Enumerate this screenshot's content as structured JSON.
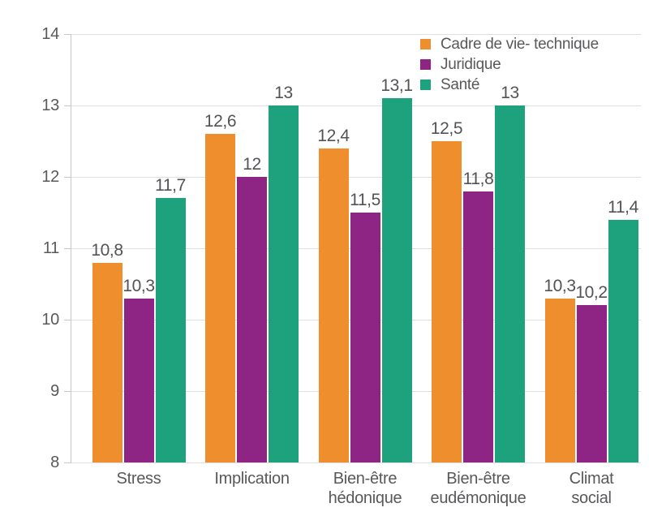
{
  "chart_data": {
    "type": "bar",
    "title": "",
    "categories": [
      "Stress",
      "Implication",
      "Bien-être\nhédonique",
      "Bien-être\neudémonique",
      "Climat\nsocial"
    ],
    "series": [
      {
        "name": "Cadre de vie- technique",
        "color": "#ee8e2d",
        "values": [
          10.8,
          12.6,
          12.4,
          12.5,
          10.3
        ],
        "labels": [
          "10,8",
          "12,6",
          "12,4",
          "12,5",
          "10,3"
        ]
      },
      {
        "name": "Juridique",
        "color": "#8e2585",
        "values": [
          10.3,
          12.0,
          11.5,
          11.8,
          10.2
        ],
        "labels": [
          "10,3",
          "12",
          "11,5",
          "11,8",
          "10,2"
        ]
      },
      {
        "name": "Santé",
        "color": "#1ea17d",
        "values": [
          11.7,
          13.0,
          13.1,
          13.0,
          11.4
        ],
        "labels": [
          "11,7",
          "13",
          "13,1",
          "13",
          "11,4"
        ]
      }
    ],
    "ylim": [
      8,
      14
    ],
    "yticks": [
      8,
      9,
      10,
      11,
      12,
      13,
      14
    ],
    "grid": true,
    "legend_position": "top-right",
    "decimal_separator": ",",
    "xlabel": "",
    "ylabel": ""
  },
  "colors": {
    "grid": "#dedede",
    "axis": "#c7c7c7",
    "text": "#58595b"
  }
}
